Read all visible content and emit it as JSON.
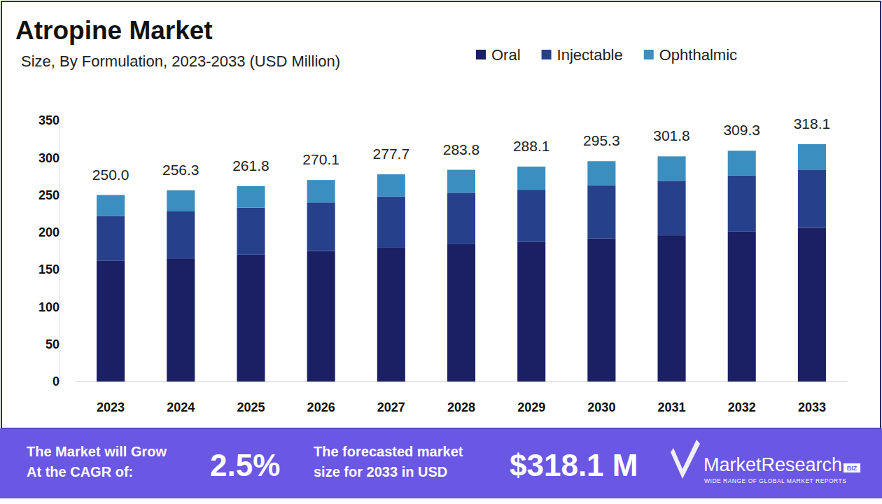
{
  "chart_data": {
    "type": "bar",
    "stacked": true,
    "title": "Atropine Market",
    "subtitle": "Size, By Formulation, 2023-2033 (USD Million)",
    "categories": [
      "2023",
      "2024",
      "2025",
      "2026",
      "2027",
      "2028",
      "2029",
      "2030",
      "2031",
      "2032",
      "2033"
    ],
    "series": [
      {
        "name": "Oral",
        "color": "#1b1f63",
        "values": [
          162,
          165,
          170,
          175,
          180,
          184,
          187,
          192,
          196,
          201,
          206
        ]
      },
      {
        "name": "Injectable",
        "color": "#26408b",
        "values": [
          60,
          63,
          63,
          65,
          68,
          69,
          70,
          71,
          73,
          75,
          78
        ]
      },
      {
        "name": "Ophthalmic",
        "color": "#3a8ec0",
        "values": [
          28,
          28.3,
          28.8,
          30.1,
          29.7,
          30.8,
          31.1,
          32.3,
          32.8,
          33.3,
          34.1
        ]
      }
    ],
    "totals": [
      250.0,
      256.3,
      261.8,
      270.1,
      277.7,
      283.8,
      288.1,
      295.3,
      301.8,
      309.3,
      318.1
    ],
    "totals_labels": [
      "250.0",
      "256.3",
      "261.8",
      "270.1",
      "277.7",
      "283.8",
      "288.1",
      "295.3",
      "301.8",
      "309.3",
      "318.1"
    ],
    "ylim": [
      0,
      350
    ],
    "yticks": [
      0,
      50,
      100,
      150,
      200,
      250,
      300,
      350
    ],
    "grid": false,
    "legend": "top-right"
  },
  "footer": {
    "cagr_label": [
      "The Market will Grow",
      "At the CAGR of:"
    ],
    "cagr": "2.5%",
    "forecast_label": [
      "The forecasted market",
      "size for 2033 in USD"
    ],
    "forecast": "$318.1 M",
    "brand": "MarketResearch",
    "brand_suffix": "BIZ",
    "tagline": "WIDE RANGE OF GLOBAL MARKET REPORTS"
  }
}
